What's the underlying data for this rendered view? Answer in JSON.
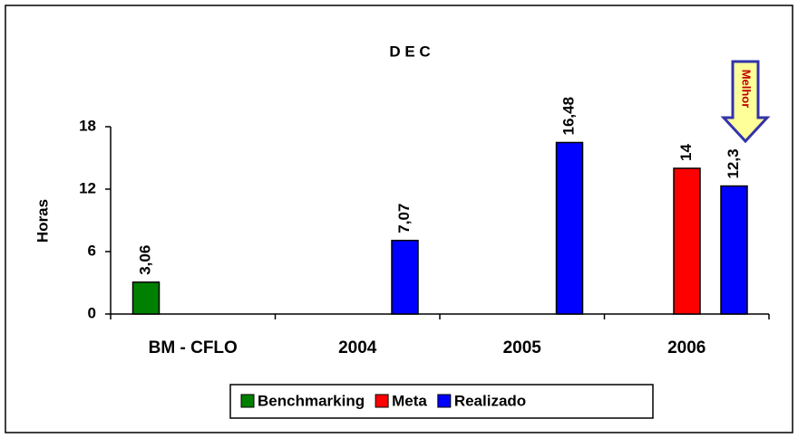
{
  "chart_data": {
    "type": "bar",
    "title": "D E C",
    "y_label": "Horas",
    "categories": [
      "BM - CFLO",
      "2004",
      "2005",
      "2006"
    ],
    "series": [
      {
        "name": "Benchmarking",
        "color": "#008000",
        "values": [
          3.06,
          null,
          null,
          null
        ],
        "value_labels": [
          "3,06",
          null,
          null,
          null
        ]
      },
      {
        "name": "Meta",
        "color": "#ff0000",
        "values": [
          null,
          null,
          null,
          14
        ],
        "value_labels": [
          null,
          null,
          null,
          "14"
        ]
      },
      {
        "name": "Realizado",
        "color": "#0000ff",
        "values": [
          null,
          7.07,
          16.48,
          12.3
        ],
        "value_labels": [
          null,
          "7,07",
          "16,48",
          "12,3"
        ]
      }
    ],
    "ylim": [
      0,
      18
    ],
    "yticks": [
      0,
      6,
      12,
      18
    ],
    "grid": false,
    "annotation": "Melhor"
  }
}
